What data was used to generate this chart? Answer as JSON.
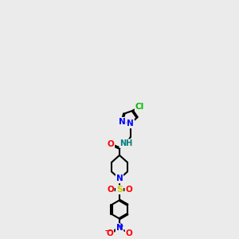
{
  "bg_color": "#ebebeb",
  "atom_colors": {
    "N": "#0000ff",
    "O": "#ff0000",
    "S": "#cccc00",
    "Cl": "#00bb00",
    "H": "#008080"
  },
  "lw": 1.5
}
